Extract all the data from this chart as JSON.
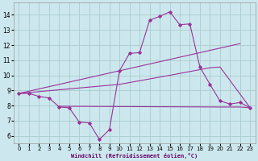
{
  "bg_color": "#cce8ee",
  "grid_color": "#aacccc",
  "line_color": "#993399",
  "xlabel": "Windchill (Refroidissement éolien,°C)",
  "xlim": [
    -0.5,
    23.5
  ],
  "ylim": [
    5.5,
    14.8
  ],
  "yticks": [
    6,
    7,
    8,
    9,
    10,
    11,
    12,
    13,
    14
  ],
  "xticks": [
    0,
    1,
    2,
    3,
    4,
    5,
    6,
    7,
    8,
    9,
    10,
    11,
    12,
    13,
    14,
    15,
    16,
    17,
    18,
    19,
    20,
    21,
    22,
    23
  ],
  "line1_x": [
    0,
    1,
    2,
    3,
    4,
    5,
    6,
    7,
    8,
    9,
    10,
    11,
    12,
    13,
    14,
    15,
    16,
    17,
    18,
    19,
    20,
    21,
    22,
    23
  ],
  "line1_y": [
    8.8,
    8.8,
    8.6,
    8.5,
    7.9,
    7.85,
    6.9,
    6.85,
    5.75,
    6.4,
    10.3,
    11.45,
    11.5,
    13.65,
    13.9,
    14.2,
    13.35,
    13.4,
    10.55,
    9.4,
    8.3,
    8.1,
    8.2,
    7.85
  ],
  "line2_x": [
    0,
    22
  ],
  "line2_y": [
    8.8,
    12.1
  ],
  "line3_x": [
    0,
    10,
    15,
    19,
    20,
    23
  ],
  "line3_y": [
    8.8,
    9.4,
    10.0,
    10.5,
    10.55,
    7.85
  ],
  "line4_x": [
    4,
    20,
    22,
    23
  ],
  "line4_y": [
    7.95,
    7.9,
    7.9,
    7.85
  ]
}
